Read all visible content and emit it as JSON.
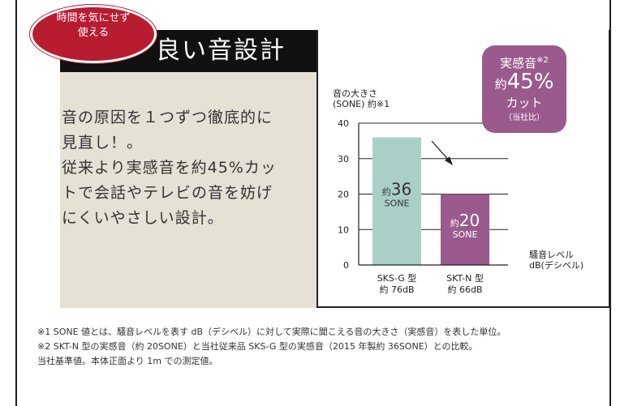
{
  "badge_label": "時間を気にせず使える",
  "badge_lines": [
    "時間を気にせず",
    "使える"
  ],
  "header_title": "良い音設計",
  "body_lines": [
    "音の原因を１つずつ徹底的に",
    "見直し！。",
    "従来より実感音を約45%カッ",
    "トで会話やテレビの音を妨げ",
    "にくいやさしい設計。"
  ],
  "reduction_badge": {
    "line1": "実感音",
    "line1_mark": "※2",
    "prefix": "約",
    "value": "45%",
    "line3": "カット",
    "line4": "（当社比）"
  },
  "chart_data": {
    "type": "bar",
    "ylabel_lines": [
      "音の大きさ",
      "(SONE) 約※1"
    ],
    "xlabel_lines": [
      "騒音レベル",
      "dB(デシベル)"
    ],
    "ylim": [
      0,
      40
    ],
    "yticks": [
      0,
      10,
      20,
      30,
      40
    ],
    "categories": [
      "SKS-G 型",
      "SKT-N 型"
    ],
    "category_sublabels": [
      "約 76dB",
      "約 66dB"
    ],
    "values": [
      36,
      20
    ],
    "value_prefix": "約",
    "value_unit": "SONE",
    "bar_colors": [
      "#a9cfc6",
      "#9a5a8e"
    ],
    "value_text_colors": [
      "#333333",
      "#ffffff"
    ],
    "grid": true
  },
  "notes": [
    "※1 SONE 値とは、騒音レベルを表す dB（デシベル）に対して実際に聞こえる音の大きさ（実感音）を表した単位。",
    "※2 SKT-N 型の実感音（約 20SONE）と当社従来品 SKS-G 型の実感音（2015 年製約 36SONE）との比較。",
    "当社基準値。本体正面より 1m での測定値。"
  ]
}
